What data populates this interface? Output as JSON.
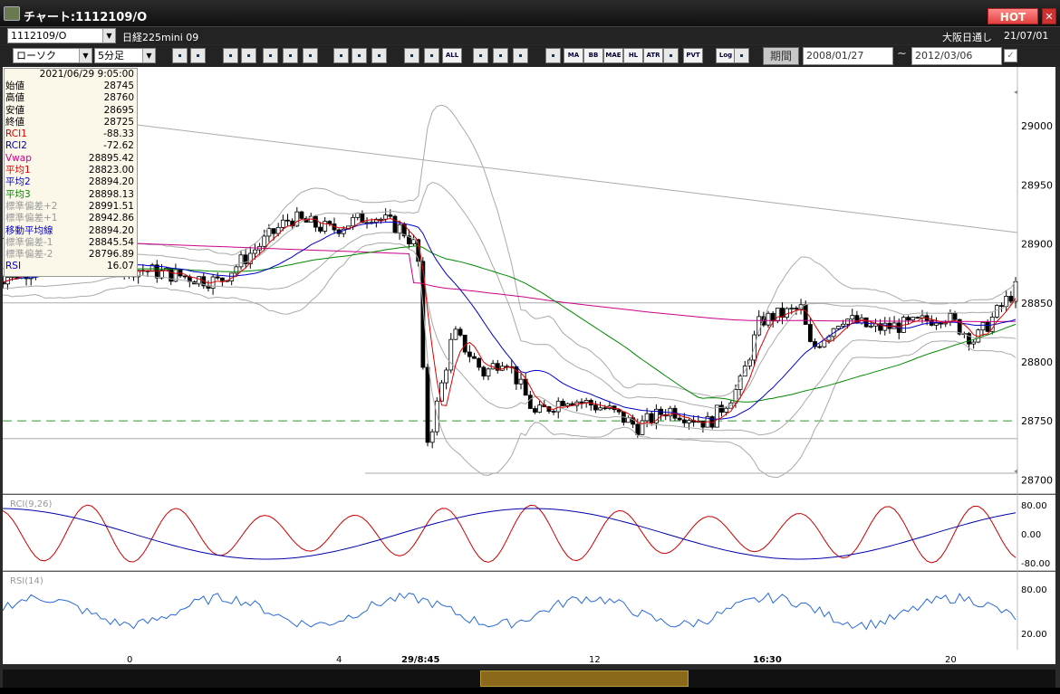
{
  "window": {
    "title": "チャート:1112109/O",
    "hot_label": "HOT"
  },
  "header": {
    "symbol": "1112109/O",
    "instrument": "日経225mini 09",
    "chart_type": "ローソク",
    "interval": "5分足",
    "market": "大阪日通し",
    "date": "21/07/01"
  },
  "toolbar": {
    "period_label": "期間",
    "date_from": "2008/01/27",
    "date_sep": "~",
    "date_to": "2012/03/06",
    "buttons": [
      "ALL",
      "MA",
      "BB",
      "MAE",
      "HL",
      "ATR",
      "PVT",
      "Log"
    ]
  },
  "info": {
    "datetime": "2021/06/29 9:05:00",
    "rows": [
      {
        "label": "始値",
        "value": "28745",
        "color": "#000000"
      },
      {
        "label": "高値",
        "value": "28760",
        "color": "#000000"
      },
      {
        "label": "安値",
        "value": "28695",
        "color": "#000000"
      },
      {
        "label": "終値",
        "value": "28725",
        "color": "#000000"
      },
      {
        "label": "RCI1",
        "value": "-88.33",
        "color": "#cc0000"
      },
      {
        "label": "RCI2",
        "value": "-72.62",
        "color": "#0000aa"
      },
      {
        "label": "Vwap",
        "value": "28895.42",
        "color": "#cc0088"
      },
      {
        "label": "平均1",
        "value": "28823.00",
        "color": "#dd0000"
      },
      {
        "label": "平均2",
        "value": "28894.20",
        "color": "#0000cc"
      },
      {
        "label": "平均3",
        "value": "28898.13",
        "color": "#008800"
      },
      {
        "label": "標準偏差+2",
        "value": "28991.51",
        "color": "#999999"
      },
      {
        "label": "標準偏差+1",
        "value": "28942.86",
        "color": "#999999"
      },
      {
        "label": "移動平均線",
        "value": "28894.20",
        "color": "#0000cc"
      },
      {
        "label": "標準偏差-1",
        "value": "28845.54",
        "color": "#999999"
      },
      {
        "label": "標準偏差-2",
        "value": "28796.89",
        "color": "#999999"
      },
      {
        "label": "RSI",
        "value": "16.07",
        "color": "#0000cc"
      }
    ]
  },
  "chart_data": {
    "type": "line",
    "price_axis": {
      "ticks": [
        "29000",
        "28950",
        "28900",
        "28850",
        "28800",
        "28750",
        "28700"
      ],
      "ylim": [
        28688,
        29050
      ]
    },
    "rci_panel": {
      "label": "RCI(9,26)",
      "ticks": [
        "80.00",
        "0.00",
        "-80.00"
      ],
      "ylim": [
        -100,
        100
      ]
    },
    "rsi_panel": {
      "label": "RSI(14)",
      "ticks": [
        "80.00",
        "20.00"
      ],
      "ylim": [
        0,
        100
      ]
    },
    "x_ticks": [
      "0",
      "4",
      "29/8:45",
      "12",
      "16:30",
      "20"
    ],
    "reference_lines": {
      "dashed_green": 28750,
      "gray_upper": 28850,
      "gray_lower": 28735
    }
  },
  "colors": {
    "ma_short": "#dd0000",
    "ma_mid": "#0000cc",
    "ma_long": "#008800",
    "vwap": "#cc0088",
    "band": "#aaaaaa",
    "rsi": "#2a6ad8"
  }
}
